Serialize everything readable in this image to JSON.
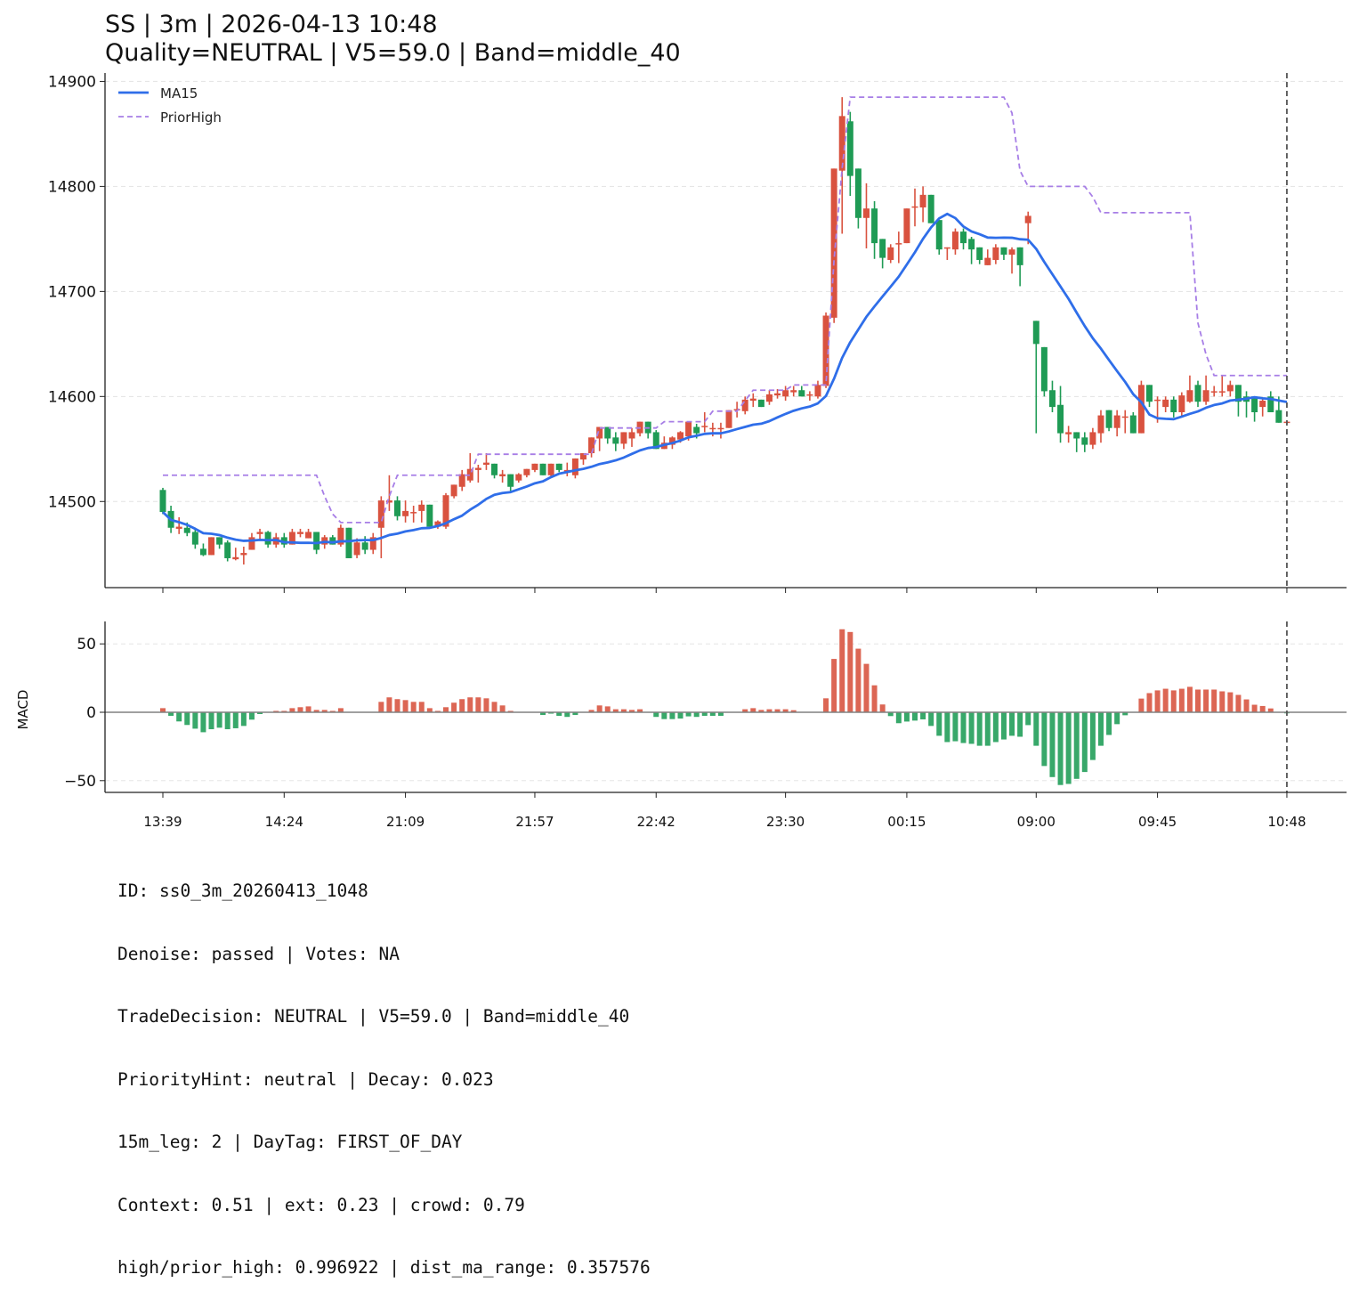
{
  "title": {
    "line1": "SS | 3m | 2026-04-13 10:48",
    "line2": "Quality=NEUTRAL | V5=59.0 | Band=middle_40"
  },
  "colors": {
    "up": "#d9523f",
    "down": "#1f9b55",
    "macd_up": "#dc6654",
    "macd_down": "#38a86a",
    "ma": "#2f6ee9",
    "prior_high": "#a77ee6"
  },
  "chart_data": [
    {
      "type": "candlestick",
      "ylim": [
        14418,
        14908
      ],
      "yticks": [
        14500,
        14600,
        14700,
        14800,
        14900
      ],
      "grid": true,
      "legend_placement": "top-left",
      "legend": [
        "MA15",
        "PriorHigh"
      ],
      "xtick_labels": [
        {
          "index": 0,
          "label": "13:39"
        },
        {
          "index": 15,
          "label": "14:24"
        },
        {
          "index": 30,
          "label": "21:09"
        },
        {
          "index": 46,
          "label": "21:57"
        },
        {
          "index": 61,
          "label": "22:42"
        },
        {
          "index": 77,
          "label": "23:30"
        },
        {
          "index": 92,
          "label": "00:15"
        },
        {
          "index": 108,
          "label": "09:00"
        },
        {
          "index": 123,
          "label": "09:45"
        },
        {
          "index": 139,
          "label": "10:48"
        }
      ],
      "marker_index": 139,
      "ohlc": [
        [
          14511,
          14513,
          14488,
          14490
        ],
        [
          14491,
          14496,
          14470,
          14475
        ],
        [
          14474,
          14485,
          14469,
          14476
        ],
        [
          14475,
          14480,
          14467,
          14470
        ],
        [
          14471,
          14475,
          14455,
          14459
        ],
        [
          14455,
          14460,
          14448,
          14449
        ],
        [
          14449,
          14466,
          14449,
          14466
        ],
        [
          14466,
          14466,
          14455,
          14459
        ],
        [
          14461,
          14463,
          14443,
          14446
        ],
        [
          14445,
          14456,
          14444,
          14447
        ],
        [
          14449,
          14457,
          14440,
          14451
        ],
        [
          14454,
          14470,
          14454,
          14466
        ],
        [
          14469,
          14474,
          14464,
          14471
        ],
        [
          14471,
          14472,
          14456,
          14459
        ],
        [
          14459,
          14470,
          14456,
          14466
        ],
        [
          14466,
          14470,
          14456,
          14459
        ],
        [
          14459,
          14474,
          14459,
          14471
        ],
        [
          14469,
          14474,
          14466,
          14471
        ],
        [
          14465,
          14474,
          14465,
          14471
        ],
        [
          14471,
          14471,
          14450,
          14454
        ],
        [
          14459,
          14468,
          14455,
          14466
        ],
        [
          14466,
          14468,
          14459,
          14459
        ],
        [
          14459,
          14478,
          14457,
          14475
        ],
        [
          14475,
          14475,
          14446,
          14446
        ],
        [
          14449,
          14465,
          14446,
          14461
        ],
        [
          14461,
          14467,
          14450,
          14454
        ],
        [
          14454,
          14470,
          14450,
          14466
        ],
        [
          14475,
          14505,
          14446,
          14501
        ],
        [
          14499,
          14525,
          14491,
          14501
        ],
        [
          14501,
          14505,
          14482,
          14486
        ],
        [
          14486,
          14501,
          14480,
          14491
        ],
        [
          14489,
          14496,
          14480,
          14490
        ],
        [
          14491,
          14501,
          14480,
          14497
        ],
        [
          14497,
          14497,
          14476,
          14476
        ],
        [
          14476,
          14482,
          14474,
          14481
        ],
        [
          14476,
          14508,
          14474,
          14506
        ],
        [
          14505,
          14516,
          14503,
          14516
        ],
        [
          14514,
          14530,
          14510,
          14526
        ],
        [
          14520,
          14546,
          14518,
          14531
        ],
        [
          14530,
          14535,
          14518,
          14532
        ],
        [
          14535,
          14546,
          14530,
          14537
        ],
        [
          14536,
          14536,
          14522,
          14525
        ],
        [
          14524,
          14530,
          14518,
          14526
        ],
        [
          14526,
          14526,
          14510,
          14514
        ],
        [
          14520,
          14527,
          14518,
          14526
        ],
        [
          14525,
          14531,
          14523,
          14531
        ],
        [
          14530,
          14536,
          14528,
          14536
        ],
        [
          14536,
          14536,
          14525,
          14525
        ],
        [
          14525,
          14536,
          14523,
          14536
        ],
        [
          14536,
          14536,
          14528,
          14530
        ],
        [
          14528,
          14537,
          14524,
          14530
        ],
        [
          14525,
          14541,
          14522,
          14541
        ],
        [
          14540,
          14546,
          14535,
          14546
        ],
        [
          14546,
          14561,
          14542,
          14561
        ],
        [
          14560,
          14571,
          14548,
          14571
        ],
        [
          14571,
          14571,
          14555,
          14560
        ],
        [
          14561,
          14566,
          14548,
          14555
        ],
        [
          14555,
          14566,
          14550,
          14566
        ],
        [
          14560,
          14570,
          14552,
          14566
        ],
        [
          14565,
          14576,
          14562,
          14576
        ],
        [
          14576,
          14576,
          14560,
          14565
        ],
        [
          14566,
          14568,
          14550,
          14550
        ],
        [
          14550,
          14562,
          14550,
          14556
        ],
        [
          14554,
          14562,
          14550,
          14561
        ],
        [
          14559,
          14567,
          14556,
          14566
        ],
        [
          14562,
          14576,
          14558,
          14576
        ],
        [
          14571,
          14574,
          14560,
          14565
        ],
        [
          14571,
          14585,
          14566,
          14572
        ],
        [
          14569,
          14575,
          14562,
          14570
        ],
        [
          14569,
          14575,
          14560,
          14570
        ],
        [
          14570,
          14587,
          14570,
          14587
        ],
        [
          14587,
          14595,
          14580,
          14588
        ],
        [
          14586,
          14600,
          14583,
          14597
        ],
        [
          14596,
          14603,
          14590,
          14598
        ],
        [
          14597,
          14597,
          14590,
          14590
        ],
        [
          14595,
          14606,
          14592,
          14602
        ],
        [
          14601,
          14607,
          14598,
          14603
        ],
        [
          14600,
          14610,
          14596,
          14606
        ],
        [
          14604,
          14610,
          14600,
          14606
        ],
        [
          14606,
          14610,
          14600,
          14600
        ],
        [
          14601,
          14605,
          14596,
          14602
        ],
        [
          14600,
          14615,
          14598,
          14611
        ],
        [
          14610,
          14680,
          14608,
          14677
        ],
        [
          14675,
          14817,
          14670,
          14817
        ],
        [
          14815,
          14885,
          14755,
          14867
        ],
        [
          14862,
          14871,
          14791,
          14810
        ],
        [
          14817,
          14817,
          14760,
          14770
        ],
        [
          14770,
          14803,
          14741,
          14779
        ],
        [
          14779,
          14786,
          14731,
          14746
        ],
        [
          14750,
          14750,
          14722,
          14732
        ],
        [
          14730,
          14745,
          14727,
          14742
        ],
        [
          14745,
          14757,
          14727,
          14746
        ],
        [
          14746,
          14779,
          14746,
          14779
        ],
        [
          14780,
          14798,
          14762,
          14781
        ],
        [
          14780,
          14800,
          14766,
          14792
        ],
        [
          14792,
          14792,
          14765,
          14765
        ],
        [
          14768,
          14768,
          14735,
          14740
        ],
        [
          14741,
          14742,
          14730,
          14742
        ],
        [
          14740,
          14760,
          14735,
          14757
        ],
        [
          14757,
          14760,
          14740,
          14746
        ],
        [
          14750,
          14752,
          14726,
          14740
        ],
        [
          14742,
          14742,
          14726,
          14730
        ],
        [
          14725,
          14740,
          14725,
          14732
        ],
        [
          14730,
          14745,
          14726,
          14742
        ],
        [
          14742,
          14742,
          14730,
          14735
        ],
        [
          14735,
          14742,
          14717,
          14740
        ],
        [
          14742,
          14742,
          14705,
          14725
        ],
        [
          14765,
          14776,
          14745,
          14772
        ],
        [
          14672,
          14672,
          14565,
          14650
        ],
        [
          14647,
          14647,
          14600,
          14605
        ],
        [
          14606,
          14615,
          14585,
          14590
        ],
        [
          14592,
          14610,
          14556,
          14565
        ],
        [
          14564,
          14572,
          14556,
          14566
        ],
        [
          14566,
          14566,
          14547,
          14560
        ],
        [
          14561,
          14566,
          14547,
          14554
        ],
        [
          14554,
          14570,
          14550,
          14566
        ],
        [
          14565,
          14587,
          14556,
          14582
        ],
        [
          14587,
          14587,
          14567,
          14570
        ],
        [
          14570,
          14587,
          14562,
          14582
        ],
        [
          14580,
          14587,
          14565,
          14581
        ],
        [
          14582,
          14585,
          14565,
          14565
        ],
        [
          14565,
          14615,
          14565,
          14611
        ],
        [
          14611,
          14611,
          14590,
          14595
        ],
        [
          14596,
          14600,
          14575,
          14597
        ],
        [
          14590,
          14600,
          14585,
          14597
        ],
        [
          14597,
          14600,
          14580,
          14585
        ],
        [
          14585,
          14604,
          14580,
          14601
        ],
        [
          14595,
          14620,
          14594,
          14606
        ],
        [
          14611,
          14615,
          14590,
          14595
        ],
        [
          14595,
          14620,
          14592,
          14606
        ],
        [
          14604,
          14610,
          14600,
          14605
        ],
        [
          14604,
          14620,
          14600,
          14605
        ],
        [
          14605,
          14615,
          14600,
          14611
        ],
        [
          14611,
          14611,
          14581,
          14595
        ],
        [
          14600,
          14605,
          14580,
          14595
        ],
        [
          14600,
          14600,
          14576,
          14585
        ],
        [
          14590,
          14598,
          14581,
          14596
        ],
        [
          14600,
          14605,
          14585,
          14585
        ],
        [
          14587,
          14600,
          14575,
          14575
        ],
        [
          14575,
          14577,
          14574,
          14576
        ]
      ],
      "series": [
        {
          "name": "MA15",
          "style": "solid",
          "window": 15
        },
        {
          "name": "PriorHigh",
          "style": "dashed",
          "values": [
            14525,
            14525,
            14525,
            14525,
            14525,
            14525,
            14525,
            14525,
            14525,
            14525,
            14525,
            14525,
            14525,
            14525,
            14525,
            14525,
            14525,
            14525,
            14525,
            14525,
            14505,
            14488,
            14480,
            14480,
            14480,
            14480,
            14480,
            14480,
            14505,
            14525,
            14525,
            14525,
            14525,
            14525,
            14525,
            14525,
            14525,
            14525,
            14525,
            14545,
            14545,
            14545,
            14545,
            14545,
            14545,
            14545,
            14545,
            14545,
            14545,
            14545,
            14545,
            14545,
            14545,
            14545,
            14570,
            14570,
            14570,
            14570,
            14570,
            14570,
            14570,
            14570,
            14576,
            14576,
            14576,
            14576,
            14576,
            14576,
            14586,
            14586,
            14586,
            14586,
            14596,
            14606,
            14606,
            14606,
            14606,
            14606,
            14611,
            14611,
            14611,
            14611,
            14611,
            14730,
            14817,
            14885,
            14885,
            14885,
            14885,
            14885,
            14885,
            14885,
            14885,
            14885,
            14885,
            14885,
            14885,
            14885,
            14885,
            14885,
            14885,
            14885,
            14885,
            14885,
            14885,
            14870,
            14815,
            14800,
            14800,
            14800,
            14800,
            14800,
            14800,
            14800,
            14800,
            14790,
            14775,
            14775,
            14775,
            14775,
            14775,
            14775,
            14775,
            14775,
            14775,
            14775,
            14775,
            14775,
            14670,
            14640,
            14620,
            14620,
            14620,
            14620,
            14620,
            14620,
            14620,
            14620,
            14620,
            14620
          ]
        }
      ]
    },
    {
      "type": "bar",
      "ylabel": "MACD",
      "ylim": [
        -58.6,
        66.4
      ],
      "yticks": [
        -50,
        0,
        50
      ],
      "grid": true,
      "values": [
        3,
        -2.6,
        -6.7,
        -9.3,
        -12,
        -14.6,
        -12.4,
        -11.3,
        -12.4,
        -11.7,
        -10,
        -5.4,
        -1.3,
        0,
        1,
        1,
        3,
        3.7,
        4.3,
        1.7,
        1.7,
        1,
        3,
        0,
        0,
        0,
        0,
        7.6,
        10.9,
        9.6,
        8.9,
        7.6,
        7.6,
        3,
        1,
        3.7,
        7,
        9.6,
        10.9,
        10.9,
        10.2,
        7.6,
        5,
        1,
        0,
        0,
        0,
        -2,
        -1,
        -2.6,
        -3.4,
        -2,
        0,
        1.7,
        5,
        4.3,
        2.2,
        2.2,
        1.7,
        2.2,
        0,
        -3.4,
        -5,
        -5,
        -4.6,
        -3,
        -3.4,
        -2.6,
        -2.6,
        -2.6,
        0,
        0,
        2.2,
        3,
        1.7,
        2.2,
        2.2,
        2.2,
        1.5,
        0,
        0,
        0,
        10.2,
        39,
        60.7,
        58.7,
        46.5,
        35.4,
        19.7,
        5.7,
        -2.8,
        -8,
        -6.8,
        -6.1,
        -5.2,
        -10,
        -17.2,
        -21.8,
        -21.2,
        -22.5,
        -23.1,
        -24.5,
        -24.5,
        -21.8,
        -19.9,
        -17.2,
        -17.9,
        -9.4,
        -24.5,
        -39.3,
        -47.4,
        -53.2,
        -52.4,
        -48.7,
        -43.7,
        -34.9,
        -24.5,
        -16.6,
        -8.7,
        -2.2,
        0,
        10,
        14,
        16,
        17.2,
        16,
        17.2,
        18.6,
        16.6,
        16.6,
        16.6,
        15.3,
        14.6,
        12.7,
        9.4,
        5.5,
        4.6,
        2.8,
        0,
        -0.8
      ]
    }
  ],
  "footer": {
    "lines": [
      "ID: ss0_3m_20260413_1048",
      "Denoise: passed | Votes: NA",
      "TradeDecision: NEUTRAL | V5=59.0 | Band=middle_40",
      "PriorityHint: neutral | Decay: 0.023",
      "15m_leg: 2 | DayTag: FIRST_OF_DAY",
      "Context: 0.51 | ext: 0.23 | crowd: 0.79",
      "high/prior_high: 0.996922 | dist_ma_range: 0.357576"
    ]
  }
}
